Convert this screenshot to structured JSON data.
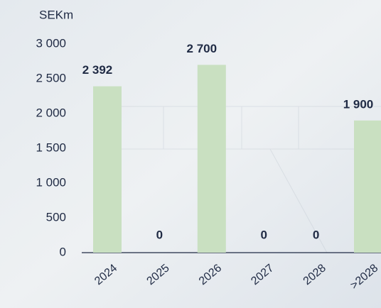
{
  "chart_data": {
    "type": "bar",
    "y_label": "SEKm",
    "categories": [
      "2024",
      "2025",
      "2026",
      "2027",
      "2028",
      ">2028"
    ],
    "values": [
      2392,
      0,
      2700,
      0,
      0,
      1900
    ],
    "value_labels": [
      "2 392",
      "0",
      "2 700",
      "0",
      "0",
      "1 900"
    ],
    "color": "#c9e0c1",
    "ylim": [
      0,
      3000
    ],
    "yticks": [
      0,
      {
        "value": 500,
        "label": "500"
      },
      {
        "value": 1000,
        "label": "1 000"
      },
      {
        "value": 1500,
        "label": "1 500"
      },
      {
        "value": 2000,
        "label": "2 000"
      },
      {
        "value": 2500,
        "label": "2 500"
      },
      {
        "value": 3000,
        "label": "3 000"
      }
    ],
    "grid": false
  }
}
